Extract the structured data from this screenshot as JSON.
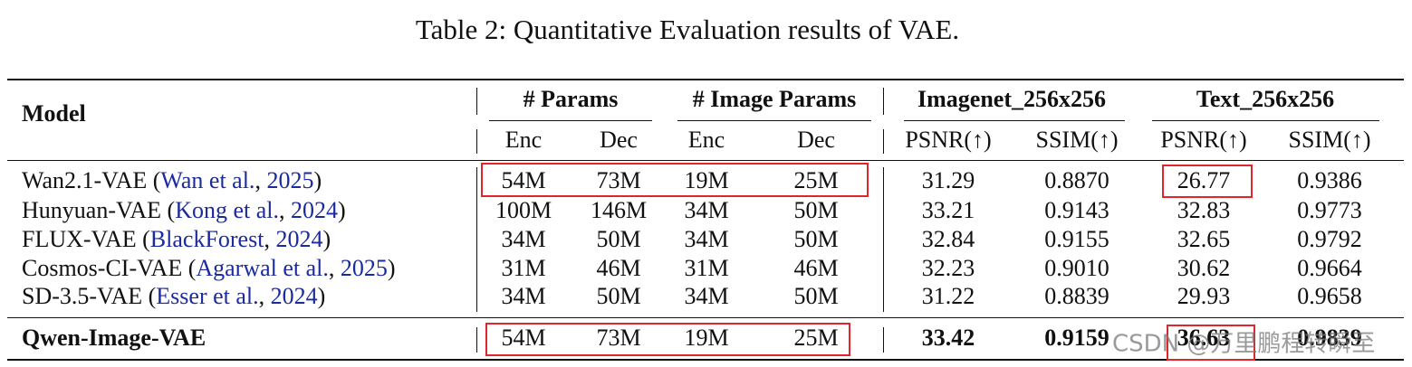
{
  "title": "Table 2: Quantitative Evaluation results of VAE.",
  "table": {
    "header": {
      "model": "Model",
      "groups": [
        "# Params",
        "# Image Params",
        "Imagenet_256x256",
        "Text_256x256"
      ],
      "subheaders": [
        "Enc",
        "Dec",
        "Enc",
        "Dec",
        "PSNR(↑)",
        "SSIM(↑)",
        "PSNR(↑)",
        "SSIM(↑)"
      ]
    },
    "rows": [
      {
        "label": [
          "Wan2.1-VAE (",
          "Wan et al.",
          ", ",
          "2025",
          ")"
        ],
        "cells": [
          "54M",
          "73M",
          "19M",
          "25M",
          "31.29",
          "0.8870",
          "26.77",
          "0.9386"
        ]
      },
      {
        "label": [
          "Hunyuan-VAE (",
          "Kong et al.",
          ", ",
          "2024",
          ")"
        ],
        "cells": [
          "100M",
          "146M",
          "34M",
          "50M",
          "33.21",
          "0.9143",
          "32.83",
          "0.9773"
        ]
      },
      {
        "label": [
          "FLUX-VAE (",
          "BlackForest",
          ", ",
          "2024",
          ")"
        ],
        "cells": [
          "34M",
          "50M",
          "34M",
          "50M",
          "32.84",
          "0.9155",
          "32.65",
          "0.9792"
        ]
      },
      {
        "label": [
          "Cosmos-CI-VAE (",
          "Agarwal et al.",
          ", ",
          "2025",
          ")"
        ],
        "cells": [
          "31M",
          "46M",
          "31M",
          "46M",
          "32.23",
          "0.9010",
          "30.62",
          "0.9664"
        ]
      },
      {
        "label": [
          "SD-3.5-VAE (",
          "Esser et al.",
          ", ",
          "2024",
          ")"
        ],
        "cells": [
          "34M",
          "50M",
          "34M",
          "50M",
          "31.22",
          "0.8839",
          "29.93",
          "0.9658"
        ]
      }
    ],
    "highlight_row": {
      "label": "Qwen-Image-VAE",
      "cells": [
        "54M",
        "73M",
        "19M",
        "25M",
        "33.42",
        "0.9159",
        "36.63",
        "0.9839"
      ]
    }
  },
  "watermark": "CSDN @万里鹏程转瞬至"
}
